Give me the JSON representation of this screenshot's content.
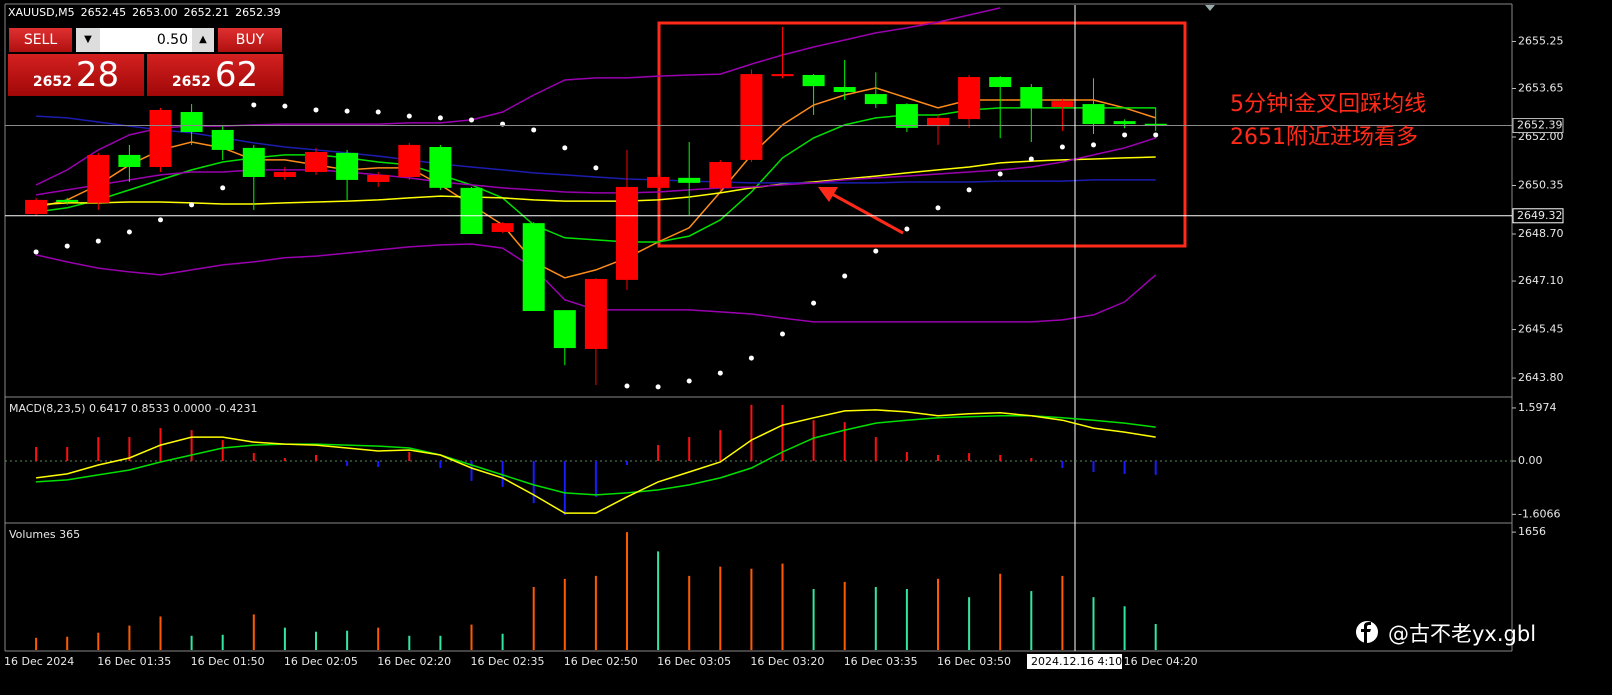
{
  "header": {
    "symbol": "XAUUSD,M5",
    "ohlc": [
      "2652.45",
      "2653.00",
      "2652.21",
      "2652.39"
    ]
  },
  "trade_panel": {
    "sell": "SELL",
    "buy": "BUY",
    "lot": "0.50",
    "bid_prefix": "2652",
    "bid_pips": "28",
    "ask_prefix": "2652",
    "ask_pips": "62"
  },
  "annotation": {
    "lines": [
      "5分钟i金叉回踩均线",
      "2651附近进场看多"
    ]
  },
  "watermark": "@古不老yx.gbl",
  "chart_data": [
    {
      "type": "candlestick",
      "up_color": "#ff0000",
      "down_color": "#00ff00",
      "categories": [
        "16 Dec 2024",
        null,
        null,
        "16 Dec 01:35",
        null,
        null,
        "16 Dec 01:50",
        null,
        null,
        "16 Dec 02:05",
        null,
        null,
        "16 Dec 02:20",
        null,
        null,
        "16 Dec 02:35",
        null,
        null,
        "16 Dec 02:50",
        null,
        null,
        "16 Dec 03:05",
        null,
        null,
        "16 Dec 03:20",
        null,
        null,
        "16 Dec 03:35",
        null,
        null,
        "16 Dec 03:50",
        null,
        null,
        null,
        null,
        null,
        "16 Dec 04:20",
        null
      ],
      "open": [
        null,
        2649.38,
        2649.86,
        2649.76,
        2651.39,
        2650.98,
        2652.85,
        2652.24,
        2651.63,
        2650.64,
        2650.81,
        2651.46,
        2650.47,
        2650.64,
        2651.66,
        2650.27,
        2648.77,
        2649.07,
        2646.11,
        2644.79,
        2647.14,
        2650.27,
        2650.61,
        2650.27,
        2651.22,
        2654.07,
        2654.11,
        2653.7,
        2653.46,
        2653.12,
        2652.37,
        2652.61,
        2654.04,
        2653.7,
        2653.02,
        2653.12,
        2652.54,
        2652.45
      ],
      "high": [
        null,
        2649.93,
        2649.93,
        2651.46,
        2651.73,
        2652.99,
        2653.12,
        2652.37,
        2651.73,
        2650.98,
        2651.63,
        2651.56,
        2650.81,
        2651.8,
        2651.73,
        2650.3,
        2649.1,
        2649.1,
        2646.11,
        2647.2,
        2651.56,
        2650.71,
        2651.83,
        2651.22,
        2654.3,
        2655.74,
        2654.14,
        2654.62,
        2654.2,
        2653.15,
        2652.75,
        2654.11,
        2654.07,
        2653.8,
        2653.3,
        2654.0,
        2652.6,
        2653.0
      ],
      "low": [
        null,
        2649.3,
        2649.7,
        2649.52,
        2650.47,
        2650.81,
        2651.73,
        2651.22,
        2649.52,
        2650.54,
        2650.71,
        2649.86,
        2650.3,
        2650.54,
        2650.2,
        2648.7,
        2648.74,
        2646.08,
        2644.24,
        2643.56,
        2646.8,
        2650.2,
        2649.35,
        2650.2,
        2651.15,
        2654.0,
        2652.75,
        2653.26,
        2652.99,
        2652.17,
        2651.73,
        2652.31,
        2651.96,
        2651.83,
        2652.2,
        2652.1,
        2652.3,
        2652.21
      ],
      "close": [
        null,
        2649.86,
        2649.79,
        2651.39,
        2650.98,
        2652.92,
        2652.17,
        2651.56,
        2650.64,
        2650.81,
        2651.49,
        2650.54,
        2650.71,
        2651.73,
        2650.27,
        2648.7,
        2649.07,
        2646.08,
        2644.82,
        2647.17,
        2650.3,
        2650.64,
        2650.44,
        2651.15,
        2654.14,
        2654.14,
        2653.73,
        2653.53,
        2653.12,
        2652.31,
        2652.65,
        2654.04,
        2653.7,
        2652.99,
        2653.22,
        2652.44,
        2652.44,
        2652.39
      ],
      "lines": [
        {
          "color": "#ff8c1a",
          "values": [
            null,
            2649.59,
            2649.86,
            2650.37,
            2651.05,
            2651.56,
            2651.83,
            2651.63,
            2651.22,
            2651.22,
            2651.05,
            2650.88,
            2650.95,
            2650.95,
            2650.37,
            2649.69,
            2649.01,
            2647.75,
            2647.21,
            2647.48,
            2647.89,
            2648.43,
            2648.91,
            2650.13,
            2651.39,
            2652.41,
            2653.09,
            2653.43,
            2653.67,
            2653.33,
            2652.99,
            2653.26,
            2653.26,
            2653.26,
            2653.26,
            2653.26,
            2652.99,
            2652.65
          ]
        },
        {
          "color": "#00e000",
          "values": [
            null,
            2649.45,
            2649.59,
            2649.86,
            2650.2,
            2650.54,
            2650.88,
            2651.15,
            2651.29,
            2651.39,
            2651.39,
            2651.29,
            2651.15,
            2651.05,
            2650.71,
            2650.37,
            2649.93,
            2649.01,
            2648.57,
            2648.5,
            2648.43,
            2648.43,
            2648.63,
            2649.18,
            2650.13,
            2651.29,
            2651.97,
            2652.41,
            2652.65,
            2652.75,
            2652.75,
            2652.92,
            2652.99,
            2652.99,
            2652.99,
            2652.99,
            2652.99,
            2652.99
          ]
        },
        {
          "color": "#ffff00",
          "values": [
            null,
            2649.69,
            2649.76,
            2649.76,
            2649.79,
            2649.79,
            2649.76,
            2649.72,
            2649.72,
            2649.76,
            2649.79,
            2649.82,
            2649.86,
            2649.93,
            2649.99,
            2649.96,
            2649.93,
            2649.86,
            2649.82,
            2649.82,
            2649.82,
            2649.86,
            2649.96,
            2650.1,
            2650.27,
            2650.4,
            2650.47,
            2650.57,
            2650.67,
            2650.78,
            2650.88,
            2650.98,
            2651.12,
            2651.18,
            2651.22,
            2651.25,
            2651.29,
            2651.32
          ]
        },
        {
          "color": "#1c1cb0",
          "values": [
            null,
            2652.71,
            2652.65,
            2652.51,
            2652.37,
            2652.24,
            2652.14,
            2651.97,
            2651.8,
            2651.66,
            2651.56,
            2651.46,
            2651.35,
            2651.22,
            2651.08,
            2650.98,
            2650.88,
            2650.78,
            2650.71,
            2650.64,
            2650.57,
            2650.54,
            2650.5,
            2650.47,
            2650.44,
            2650.44,
            2650.44,
            2650.44,
            2650.44,
            2650.47,
            2650.47,
            2650.47,
            2650.5,
            2650.5,
            2650.5,
            2650.54,
            2650.54,
            2650.54
          ]
        },
        {
          "color": "#9a00b0",
          "values": [
            null,
            2650.37,
            2650.88,
            2651.56,
            2652.07,
            2652.31,
            2652.37,
            2652.37,
            2652.41,
            2652.44,
            2652.44,
            2652.44,
            2652.44,
            2652.48,
            2652.48,
            2652.58,
            2652.85,
            2653.43,
            2653.94,
            2654.01,
            2654.01,
            2654.07,
            2654.11,
            2654.14,
            2654.48,
            2654.79,
            2655.06,
            2655.3,
            2655.54,
            2655.71,
            2655.91,
            2656.15,
            2656.39,
            null,
            null,
            null,
            null,
            null
          ]
        },
        {
          "color": "#9a00b0",
          "values": [
            null,
            2650.03,
            2650.2,
            2650.37,
            2650.54,
            2650.71,
            2650.81,
            2650.81,
            2650.88,
            2650.88,
            2650.88,
            2650.81,
            2650.71,
            2650.61,
            2650.47,
            2650.37,
            2650.27,
            2650.2,
            2650.13,
            2650.1,
            2650.1,
            2650.13,
            2650.2,
            2650.27,
            2650.3,
            2650.37,
            2650.44,
            2650.54,
            2650.61,
            2650.67,
            2650.74,
            2650.81,
            2650.88,
            2650.98,
            2651.15,
            2651.39,
            2651.63,
            2651.97
          ]
        },
        {
          "color": "#9a00b0",
          "values": [
            null,
            2647.99,
            2647.75,
            2647.54,
            2647.41,
            2647.31,
            2647.48,
            2647.65,
            2647.75,
            2647.89,
            2647.95,
            2648.05,
            2648.16,
            2648.26,
            2648.33,
            2648.36,
            2648.22,
            2647.54,
            2646.46,
            2646.12,
            2646.12,
            2646.12,
            2646.12,
            2646.05,
            2645.98,
            2645.84,
            2645.71,
            2645.71,
            2645.71,
            2645.71,
            2645.71,
            2645.71,
            2645.71,
            2645.71,
            2645.78,
            2645.95,
            2646.39,
            2647.31
          ]
        }
      ],
      "dots": {
        "color": "#ffffff",
        "values": [
          null,
          2648.09,
          2648.29,
          2648.46,
          2648.77,
          2649.18,
          2649.69,
          2650.27,
          2653.09,
          2653.05,
          2652.92,
          2652.88,
          2652.85,
          2652.71,
          2652.65,
          2652.58,
          2652.44,
          2652.24,
          2651.63,
          2650.95,
          2643.53,
          2643.5,
          2643.7,
          2643.97,
          2644.48,
          2645.3,
          2646.35,
          2647.27,
          2648.12,
          2648.87,
          2649.59,
          2650.2,
          2650.74,
          2651.25,
          2651.66,
          2651.73,
          2652.07,
          2652.07
        ]
      },
      "ylim": [
        2643.19,
        2656.49
      ],
      "yticks": [
        {
          "value": 2655.25,
          "label": "2655.25"
        },
        {
          "value": 2653.65,
          "label": "2653.65"
        },
        {
          "value": 2652.0,
          "label": "2652.00"
        },
        {
          "value": 2650.35,
          "label": "2650.35"
        },
        {
          "value": 2648.7,
          "label": "2648.70"
        },
        {
          "value": 2647.1,
          "label": "2647.10"
        },
        {
          "value": 2645.45,
          "label": "2645.45"
        },
        {
          "value": 2643.8,
          "label": "2643.80"
        }
      ],
      "last": {
        "value": 2652.39,
        "label": "2652.39"
      },
      "crosshair": {
        "x_label": "2024.12.16 4:10",
        "y": {
          "value": 2649.32,
          "label": "2649.32"
        }
      }
    },
    {
      "type": "macd",
      "title": "MACD(8,23,5) 0.6417 0.8533 0.0000 -0.4231",
      "histogram": {
        "up_color": "#ff1010",
        "down_color": "#1a1aff",
        "values": [
          null,
          0.42,
          0.42,
          0.72,
          0.72,
          0.99,
          0.93,
          0.63,
          0.24,
          0.09,
          0.18,
          -0.15,
          -0.18,
          0.27,
          -0.21,
          -0.6,
          -0.78,
          -1.27,
          -1.63,
          -1.08,
          -0.12,
          0.48,
          0.72,
          0.93,
          1.69,
          1.69,
          1.23,
          1.17,
          0.72,
          0.27,
          0.18,
          0.24,
          0.18,
          0.09,
          -0.21,
          -0.33,
          -0.39,
          -0.42
        ]
      },
      "series": [
        {
          "color": "#00e000",
          "values": [
            null,
            -0.63,
            -0.57,
            -0.42,
            -0.27,
            -0.03,
            0.18,
            0.39,
            0.48,
            0.51,
            0.51,
            0.48,
            0.45,
            0.39,
            0.18,
            -0.12,
            -0.42,
            -0.72,
            -0.96,
            -1.02,
            -0.96,
            -0.87,
            -0.72,
            -0.51,
            -0.21,
            0.27,
            0.69,
            0.93,
            1.14,
            1.23,
            1.3,
            1.33,
            1.36,
            1.36,
            1.3,
            1.23,
            1.14,
            1.02
          ]
        },
        {
          "color": "#ffff00",
          "values": [
            null,
            -0.51,
            -0.39,
            -0.12,
            0.09,
            0.48,
            0.72,
            0.72,
            0.57,
            0.51,
            0.48,
            0.39,
            0.3,
            0.33,
            0.18,
            -0.21,
            -0.51,
            -1.02,
            -1.57,
            -1.57,
            -1.08,
            -0.63,
            -0.33,
            -0.03,
            0.63,
            1.08,
            1.3,
            1.51,
            1.54,
            1.48,
            1.36,
            1.42,
            1.45,
            1.36,
            1.23,
            0.99,
            0.87,
            0.72
          ]
        }
      ],
      "ylim": [
        -1.807,
        1.867
      ],
      "yticks": [
        1.5974,
        {
          "value": 0,
          "label": "0.00"
        },
        -1.6066
      ]
    },
    {
      "type": "volume",
      "title": "Volumes 365",
      "values": [
        null,
        171,
        186,
        243,
        343,
        471,
        200,
        214,
        500,
        314,
        257,
        271,
        314,
        200,
        200,
        357,
        228,
        885,
        1000,
        1042,
        1656,
        1385,
        1042,
        1171,
        1142,
        1214,
        857,
        957,
        885,
        857,
        1000,
        742,
        1071,
        828,
        1042,
        742,
        614,
        365
      ],
      "colors": [
        null,
        "#ff5a00",
        "#ff5a00",
        "#ff5a00",
        "#ff5a00",
        "#ff5a00",
        "#30e8a0",
        "#30e8a0",
        "#ff5a00",
        "#30e8a0",
        "#30e8a0",
        "#30e8a0",
        "#ff5a00",
        "#30e8a0",
        "#30e8a0",
        "#ff5a00",
        "#30e8a0",
        "#ff5a00",
        "#ff5a00",
        "#ff5a00",
        "#ff5a00",
        "#30e8a0",
        "#ff5a00",
        "#ff5a00",
        "#ff5a00",
        "#ff5a00",
        "#30e8a0",
        "#ff5a00",
        "#30e8a0",
        "#30e8a0",
        "#ff5a00",
        "#30e8a0",
        "#ff5a00",
        "#30e8a0",
        "#ff5a00",
        "#30e8a0",
        "#30e8a0",
        "#30e8a0"
      ],
      "ylim": [
        0,
        1756
      ],
      "yticks": [
        1656
      ]
    }
  ]
}
